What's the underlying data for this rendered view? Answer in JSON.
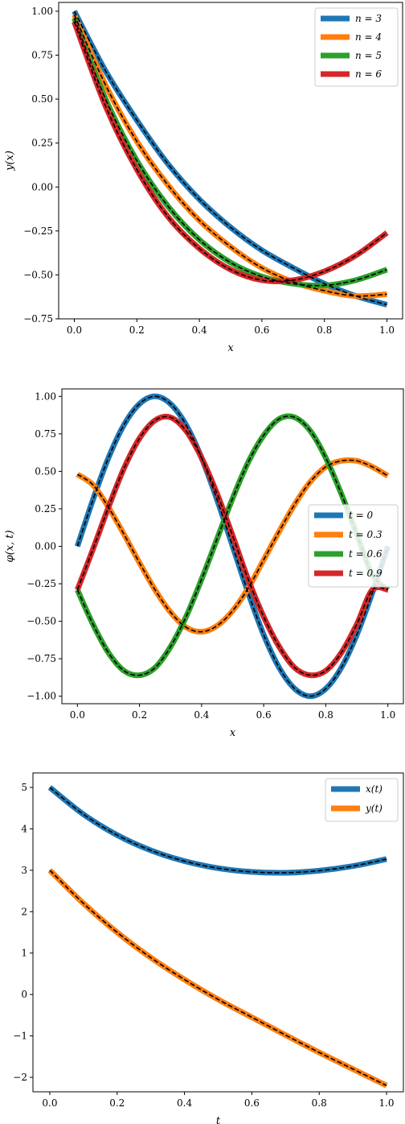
{
  "colors": {
    "series": [
      "#1f77b4",
      "#ff7f0e",
      "#2ca02c",
      "#d62728"
    ],
    "reference_line": "#000000",
    "axes": "#000000",
    "background": "#ffffff"
  },
  "chart_data": [
    {
      "type": "line",
      "title": "",
      "xlabel": "x",
      "ylabel": "y(x)",
      "xlim": [
        -0.05,
        1.05
      ],
      "ylim": [
        -0.75,
        1.05
      ],
      "xticks": [
        0.0,
        0.2,
        0.4,
        0.6,
        0.8,
        1.0
      ],
      "xtick_labels": [
        "0.0",
        "0.2",
        "0.4",
        "0.6",
        "0.8",
        "1.0"
      ],
      "yticks": [
        -0.75,
        -0.5,
        -0.25,
        0.0,
        0.25,
        0.5,
        0.75,
        1.0
      ],
      "ytick_labels": [
        "−0.75",
        "−0.50",
        "−0.25",
        "0.00",
        "0.25",
        "0.50",
        "0.75",
        "1.00"
      ],
      "grid": false,
      "legend_position": "top-right",
      "reference_style": "dashed black",
      "x": [
        0.0,
        0.1,
        0.2,
        0.3,
        0.4,
        0.5,
        0.6,
        0.7,
        0.8,
        0.9,
        1.0
      ],
      "series": [
        {
          "name": "n = 3",
          "values": [
            1.0,
            0.66,
            0.38,
            0.13,
            -0.07,
            -0.23,
            -0.36,
            -0.46,
            -0.55,
            -0.62,
            -0.67
          ]
        },
        {
          "name": "n = 4",
          "values": [
            0.98,
            0.58,
            0.26,
            0.01,
            -0.19,
            -0.34,
            -0.46,
            -0.54,
            -0.59,
            -0.62,
            -0.61
          ]
        },
        {
          "name": "n = 5",
          "values": [
            0.96,
            0.5,
            0.15,
            -0.11,
            -0.3,
            -0.43,
            -0.51,
            -0.55,
            -0.56,
            -0.53,
            -0.47
          ]
        },
        {
          "name": "n = 6",
          "values": [
            0.94,
            0.46,
            0.1,
            -0.17,
            -0.35,
            -0.47,
            -0.53,
            -0.53,
            -0.48,
            -0.39,
            -0.26
          ]
        }
      ]
    },
    {
      "type": "line",
      "title": "",
      "xlabel": "x",
      "ylabel": "φ(x, t)",
      "xlim": [
        -0.05,
        1.05
      ],
      "ylim": [
        -1.05,
        1.05
      ],
      "xticks": [
        0.0,
        0.2,
        0.4,
        0.6,
        0.8,
        1.0
      ],
      "xtick_labels": [
        "0.0",
        "0.2",
        "0.4",
        "0.6",
        "0.8",
        "1.0"
      ],
      "yticks": [
        -1.0,
        -0.75,
        -0.5,
        -0.25,
        0.0,
        0.25,
        0.5,
        0.75,
        1.0
      ],
      "ytick_labels": [
        "−1.00",
        "−0.75",
        "−0.50",
        "−0.25",
        "0.00",
        "0.25",
        "0.50",
        "0.75",
        "1.00"
      ],
      "grid": false,
      "legend_position": "center-right",
      "reference_style": "dashed black",
      "x": [
        0.0,
        0.05,
        0.1,
        0.15,
        0.2,
        0.25,
        0.3,
        0.35,
        0.4,
        0.45,
        0.5,
        0.55,
        0.6,
        0.65,
        0.7,
        0.75,
        0.8,
        0.85,
        0.9,
        0.95,
        1.0
      ],
      "series": [
        {
          "name": "t = 0",
          "values": [
            0.0,
            0.31,
            0.59,
            0.81,
            0.95,
            1.0,
            0.95,
            0.81,
            0.59,
            0.31,
            0.0,
            -0.31,
            -0.59,
            -0.81,
            -0.95,
            -1.0,
            -0.95,
            -0.81,
            -0.59,
            -0.31,
            0.0
          ]
        },
        {
          "name": "t = 0.3",
          "values": [
            0.48,
            0.41,
            0.26,
            0.08,
            -0.11,
            -0.29,
            -0.44,
            -0.54,
            -0.57,
            -0.53,
            -0.43,
            -0.28,
            -0.09,
            0.1,
            0.28,
            0.43,
            0.53,
            0.57,
            0.57,
            0.53,
            0.47
          ]
        },
        {
          "name": "t = 0.6",
          "values": [
            -0.29,
            -0.52,
            -0.71,
            -0.83,
            -0.86,
            -0.81,
            -0.67,
            -0.47,
            -0.22,
            0.05,
            0.32,
            0.56,
            0.74,
            0.85,
            0.86,
            0.77,
            0.59,
            0.35,
            0.08,
            -0.19,
            -0.29
          ]
        },
        {
          "name": "t = 0.9",
          "values": [
            -0.29,
            -0.02,
            0.26,
            0.52,
            0.72,
            0.84,
            0.86,
            0.77,
            0.59,
            0.35,
            0.07,
            -0.22,
            -0.47,
            -0.67,
            -0.81,
            -0.86,
            -0.83,
            -0.71,
            -0.52,
            -0.29,
            -0.29
          ]
        }
      ]
    },
    {
      "type": "line",
      "title": "",
      "xlabel": "t",
      "ylabel": "",
      "xlim": [
        -0.05,
        1.05
      ],
      "ylim": [
        -2.35,
        5.35
      ],
      "xticks": [
        0.0,
        0.2,
        0.4,
        0.6,
        0.8,
        1.0
      ],
      "xtick_labels": [
        "0.0",
        "0.2",
        "0.4",
        "0.6",
        "0.8",
        "1.0"
      ],
      "yticks": [
        -2,
        -1,
        0,
        1,
        2,
        3,
        4,
        5
      ],
      "ytick_labels": [
        "−2",
        "−1",
        "0",
        "1",
        "2",
        "3",
        "4",
        "5"
      ],
      "grid": false,
      "legend_position": "top-right",
      "reference_style": "dashed black",
      "x": [
        0.0,
        0.1,
        0.2,
        0.3,
        0.4,
        0.5,
        0.6,
        0.7,
        0.8,
        0.9,
        1.0
      ],
      "series": [
        {
          "name": "x(t)",
          "values": [
            5.0,
            4.35,
            3.85,
            3.48,
            3.22,
            3.05,
            2.96,
            2.94,
            2.99,
            3.1,
            3.27
          ]
        },
        {
          "name": "y(t)",
          "values": [
            3.0,
            2.2,
            1.5,
            0.89,
            0.36,
            -0.12,
            -0.55,
            -0.98,
            -1.4,
            -1.8,
            -2.2
          ]
        }
      ]
    }
  ]
}
